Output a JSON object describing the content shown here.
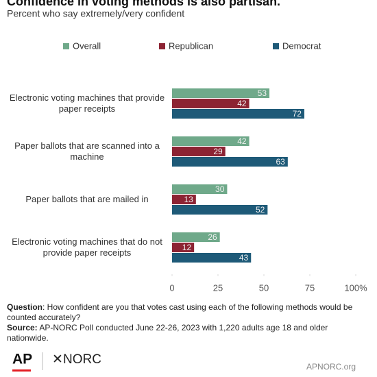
{
  "chart_data": {
    "type": "hbar",
    "title": "Confidence in voting methods is also partisan.",
    "subtitle": "Percent who say extremely/very confident",
    "categories": [
      "Electronic voting machines that provide paper receipts",
      "Paper ballots that are scanned into a machine",
      "Paper ballots that are mailed in",
      "Electronic voting machines that do not provide paper receipts"
    ],
    "series": [
      {
        "name": "Overall",
        "color": "#6fa98a",
        "values": [
          53,
          42,
          30,
          26
        ]
      },
      {
        "name": "Republican",
        "color": "#8c2333",
        "values": [
          42,
          29,
          13,
          12
        ]
      },
      {
        "name": "Democrat",
        "color": "#1e5a78",
        "values": [
          72,
          63,
          52,
          43
        ]
      }
    ],
    "xlim": [
      0,
      100
    ],
    "xticks": [
      0,
      25,
      50,
      75,
      {
        "value": 100,
        "label": "100%"
      }
    ],
    "legend": "top"
  },
  "footer": {
    "question_label": "Question",
    "question": ": How confident are you that votes cast using each of the following methods would be counted accurately?",
    "source_label": "Source:",
    "source": "AP-NORC Poll conducted June 22-26, 2023 with 1,220 adults age 18 and older nationwide."
  },
  "logos": {
    "ap": "AP",
    "norc": "NORC",
    "site": "APNORC.org"
  }
}
